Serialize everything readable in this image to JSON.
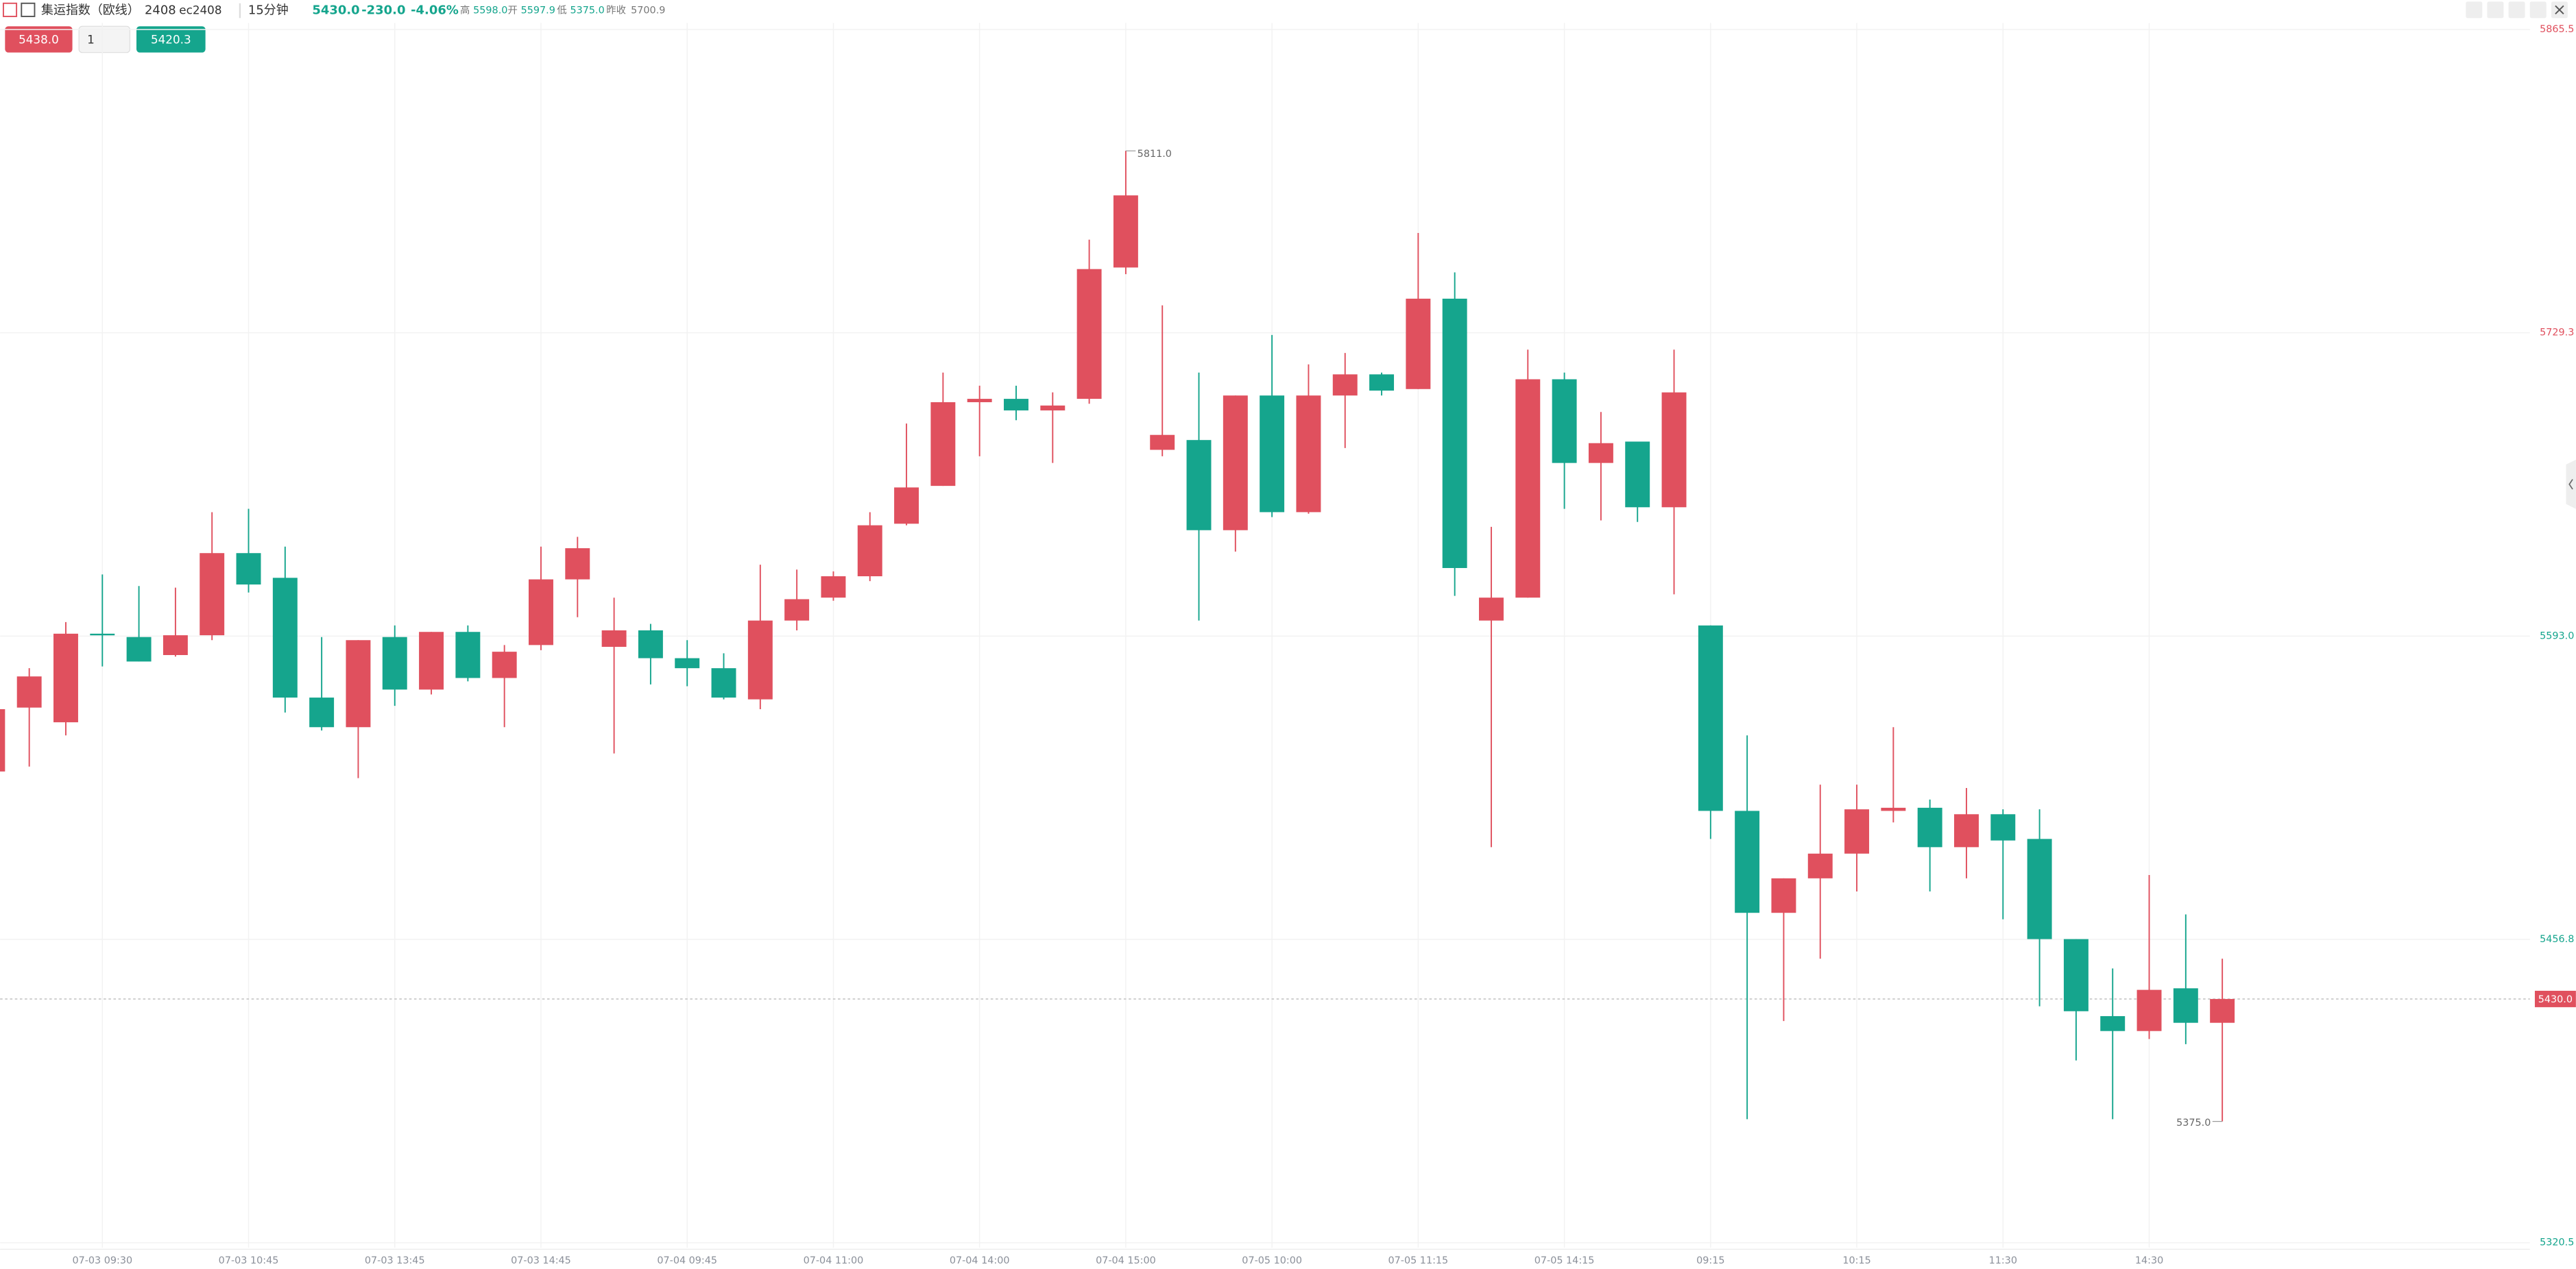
{
  "header": {
    "name": "集运指数（欧线）",
    "contract": "2408",
    "code": "ec2408",
    "period": "15分钟",
    "price": "5430.0",
    "change": "-230.0",
    "change_pct": "-4.06%",
    "stats": [
      {
        "label": "高",
        "value": "5598.0"
      },
      {
        "label": "开",
        "value": "5597.9"
      },
      {
        "label": "低",
        "value": "5375.0"
      },
      {
        "label": "昨收",
        "value": "5700.9"
      }
    ],
    "sell_button": "5438.0",
    "quantity": "1",
    "buy_button": "5420.3"
  },
  "chart_data": {
    "type": "candlestick",
    "up_color": "#e0505e",
    "down_color": "#15a58d",
    "ylim": [
      5320.5,
      5865.5
    ],
    "yticks": [
      {
        "value": 5320.5,
        "label": "5320.5"
      },
      {
        "value": 5456.8,
        "label": "5456.8"
      },
      {
        "value": 5593,
        "label": "5593.0"
      },
      {
        "value": 5729.3,
        "label": "5729.3"
      },
      {
        "value": 5865.5,
        "label": "5865.5"
      }
    ],
    "ytick_colors": [
      "#15a58d",
      "#15a58d",
      "#15a58d",
      "#e0505e",
      "#e0505e"
    ],
    "grid": true,
    "last": {
      "value": 5430,
      "label": "5430.0"
    },
    "max_label": "5811.0",
    "min_label": "5375.0",
    "categories": [
      null,
      null,
      null,
      "07-03 09:30",
      null,
      null,
      null,
      "07-03 10:45",
      null,
      null,
      null,
      "07-03 13:45",
      null,
      null,
      null,
      "07-03 14:45",
      null,
      null,
      null,
      "07-04 09:45",
      null,
      null,
      null,
      "07-04 11:00",
      null,
      null,
      null,
      "07-04 14:00",
      null,
      null,
      null,
      "07-04 15:00",
      null,
      null,
      null,
      "07-05 10:00",
      null,
      null,
      null,
      "07-05 11:15",
      null,
      null,
      null,
      "07-05 14:15",
      null,
      null,
      null,
      "09:15",
      null,
      null,
      null,
      "10:15",
      null,
      null,
      null,
      "11:30",
      null,
      null,
      null,
      "14:30",
      null,
      null
    ],
    "open": [
      5532.2,
      5560.9,
      5554.3,
      5594.1,
      5592.6,
      5584.5,
      5593.4,
      5630.3,
      5619.2,
      5565.4,
      5552.1,
      5592.6,
      5569.0,
      5594.9,
      5574.2,
      5589.0,
      5618.5,
      5588.2,
      5595.6,
      5583.1,
      5578.6,
      5564.6,
      5600.0,
      5610.3,
      5619.9,
      5643.5,
      5660.5,
      5698.1,
      5699.6,
      5694.4,
      5699.6,
      5758.6,
      5676.7,
      5681.1,
      5640.6,
      5701.1,
      5648.7,
      5701.1,
      5710.6,
      5704.0,
      5744.6,
      5600.0,
      5610.3,
      5708.4,
      5670.8,
      5680.4,
      5650.9,
      5597.8,
      5514.5,
      5468.7,
      5484.2,
      5495.3,
      5514.5,
      5515.9,
      5498.2,
      5513.0,
      5501.9,
      5456.9,
      5422.3,
      5415.6,
      5434.8,
      5419.3
    ],
    "high": [
      5560.2,
      5578.6,
      5599.3,
      5620.7,
      5615.5,
      5614.8,
      5648.7,
      5650.2,
      5633.2,
      5592.6,
      5591.2,
      5597.8,
      5594.9,
      5597.8,
      5589.0,
      5633.2,
      5637.6,
      5610.3,
      5598.5,
      5591.2,
      5585.3,
      5625.1,
      5622.9,
      5622.1,
      5648.7,
      5688.5,
      5711.4,
      5705.5,
      5705.5,
      5702.5,
      5771.1,
      5811.0,
      5741.6,
      5711.4,
      5701.1,
      5728.3,
      5715.1,
      5720.2,
      5711.4,
      5774.1,
      5756.4,
      5642.1,
      5721.7,
      5711.4,
      5693.7,
      5680.4,
      5721.7,
      5597.8,
      5548.4,
      5484.2,
      5526.3,
      5526.3,
      5552.1,
      5519.6,
      5524.8,
      5515.2,
      5515.2,
      5456.9,
      5443.7,
      5485.7,
      5468.0,
      5448.1
    ],
    "low": [
      5532.2,
      5534.4,
      5548.4,
      5579.4,
      5581.6,
      5583.8,
      5591.2,
      5612.6,
      5558.7,
      5550.6,
      5529.2,
      5561.7,
      5566.8,
      5572.7,
      5552.1,
      5586.7,
      5601.5,
      5540.3,
      5571.3,
      5570.5,
      5564.6,
      5560.2,
      5595.6,
      5608.9,
      5617.7,
      5642.8,
      5660.5,
      5673.8,
      5690.0,
      5670.8,
      5697.4,
      5755.6,
      5673.8,
      5600.0,
      5631.0,
      5646.5,
      5648.0,
      5677.5,
      5701.1,
      5704.0,
      5611.1,
      5498.2,
      5610.3,
      5650.2,
      5645.0,
      5644.3,
      5611.8,
      5501.9,
      5376.0,
      5420.1,
      5448.1,
      5478.3,
      5509.3,
      5478.3,
      5484.2,
      5465.8,
      5426.7,
      5402.4,
      5376.0,
      5412.0,
      5409.7,
      5375.0
    ],
    "close": [
      5560.2,
      5574.9,
      5594.1,
      5593.8,
      5581.6,
      5593.4,
      5630.3,
      5616.2,
      5565.4,
      5552.1,
      5591.2,
      5569.0,
      5594.9,
      5574.2,
      5586.0,
      5618.5,
      5632.5,
      5595.6,
      5583.1,
      5578.6,
      5565.4,
      5600.0,
      5609.6,
      5619.9,
      5642.8,
      5659.8,
      5698.1,
      5699.6,
      5694.4,
      5696.6,
      5757.9,
      5791.0,
      5683.4,
      5640.6,
      5701.1,
      5648.7,
      5701.1,
      5710.6,
      5703.3,
      5744.6,
      5623.6,
      5610.3,
      5708.4,
      5670.8,
      5679.7,
      5650.9,
      5702.5,
      5514.5,
      5468.7,
      5484.2,
      5495.3,
      5515.2,
      5515.9,
      5498.2,
      5513.0,
      5501.2,
      5456.9,
      5424.5,
      5415.6,
      5434.1,
      5419.3,
      5430.0
    ]
  }
}
